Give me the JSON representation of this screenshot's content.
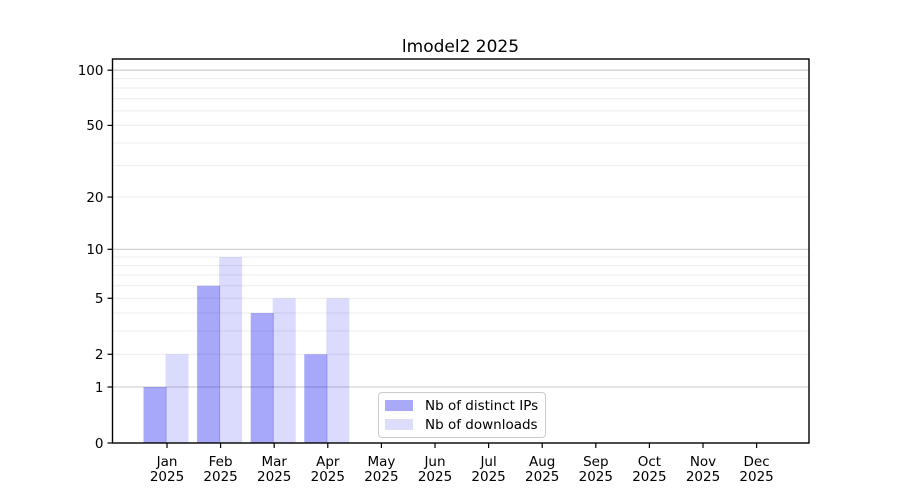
{
  "chart_data": {
    "type": "bar",
    "title": "lmodel2 2025",
    "categories": [
      "Jan",
      "Feb",
      "Mar",
      "Apr",
      "May",
      "Jun",
      "Jul",
      "Aug",
      "Sep",
      "Oct",
      "Nov",
      "Dec"
    ],
    "xtick_year": "2025",
    "series": [
      {
        "name": "Nb of distinct IPs",
        "values": [
          1,
          6,
          4,
          2,
          0,
          0,
          0,
          0,
          0,
          0,
          0,
          0
        ],
        "fill": "#0000f0",
        "fill_opacity": 0.34,
        "legend_swatch": "#a9a9fa"
      },
      {
        "name": "Nb of downloads",
        "values": [
          2,
          9,
          5,
          5,
          0,
          0,
          0,
          0,
          0,
          0,
          0,
          0
        ],
        "fill": "#0000f0",
        "fill_opacity": 0.14,
        "legend_swatch": "#dcdcfb"
      }
    ],
    "yscale": "log1p",
    "ylim": [
      0,
      115
    ],
    "y_ticks": [
      0,
      1,
      2,
      5,
      10,
      20,
      50,
      100
    ],
    "y_gridlines_major": [
      1,
      10,
      100
    ],
    "y_gridlines_minor": [
      2,
      3,
      4,
      5,
      6,
      7,
      8,
      9,
      20,
      30,
      40,
      50,
      60,
      70,
      80,
      90
    ],
    "grid": true,
    "legend": {
      "position": "lower center"
    },
    "colors": {
      "axis": "#000000",
      "grid_major": "#c9c9c9",
      "grid_minor": "#ececec",
      "background": "#ffffff"
    }
  }
}
